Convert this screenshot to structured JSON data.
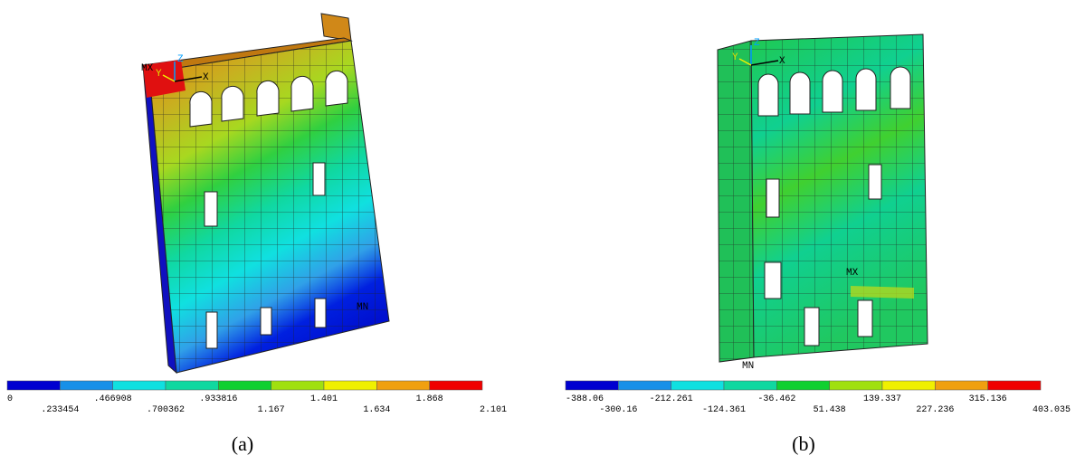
{
  "panels": [
    {
      "caption": "(a)",
      "max_label": "MX",
      "min_label": "MN",
      "axes": [
        "Z",
        "Y",
        "X"
      ],
      "legend_labels": [
        "0",
        ".233454",
        ".466908",
        ".700362",
        ".933816",
        "1.167",
        "1.401",
        "1.634",
        "1.868",
        "2.101"
      ]
    },
    {
      "caption": "(b)",
      "max_label": "MX",
      "min_label": "MN",
      "axes": [
        "Z",
        "Y",
        "X"
      ],
      "legend_labels": [
        "-388.06",
        "-300.16",
        "-212.261",
        "-124.361",
        "-36.462",
        "51.438",
        "139.337",
        "227.236",
        "315.136",
        "403.035"
      ]
    }
  ]
}
